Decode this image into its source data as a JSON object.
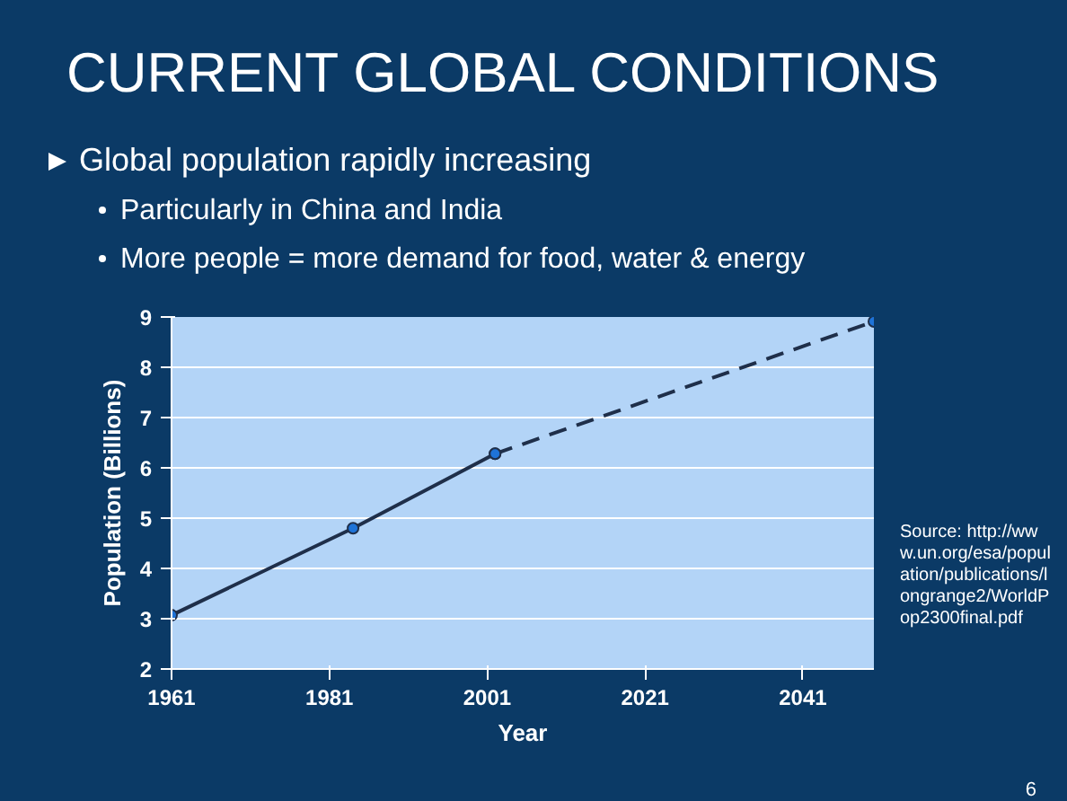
{
  "chart_data": {
    "type": "line",
    "title": "CURRENT GLOBAL CONDITIONS",
    "xlabel": "Year",
    "ylabel": "Population (Billions)",
    "series": [
      {
        "color": "#1f2f4a",
        "line_style": "solid",
        "marker": "circle",
        "x": [
          1961,
          1984,
          2002
        ],
        "values": [
          3.07,
          4.8,
          6.28
        ]
      },
      {
        "color": "#1f2f4a",
        "line_style": "dashed",
        "marker": "circle",
        "x": [
          2002,
          2050
        ],
        "values": [
          6.28,
          8.91
        ]
      }
    ],
    "xlim": [
      1961,
      2050
    ],
    "ylim": [
      2,
      9
    ],
    "xticks": [
      1961,
      1981,
      2001,
      2021,
      2041
    ],
    "yticks": [
      2,
      3,
      4,
      5,
      6,
      7,
      8,
      9
    ],
    "grid": "y",
    "annotations": [
      "Global population rapidly increasing",
      "Particularly in China and India",
      "More people = more demand for food, water & energy",
      "Source: http://www.un.org/esa/population/publications/longrange2/WorldPop2300final.pdf",
      "6"
    ]
  }
}
